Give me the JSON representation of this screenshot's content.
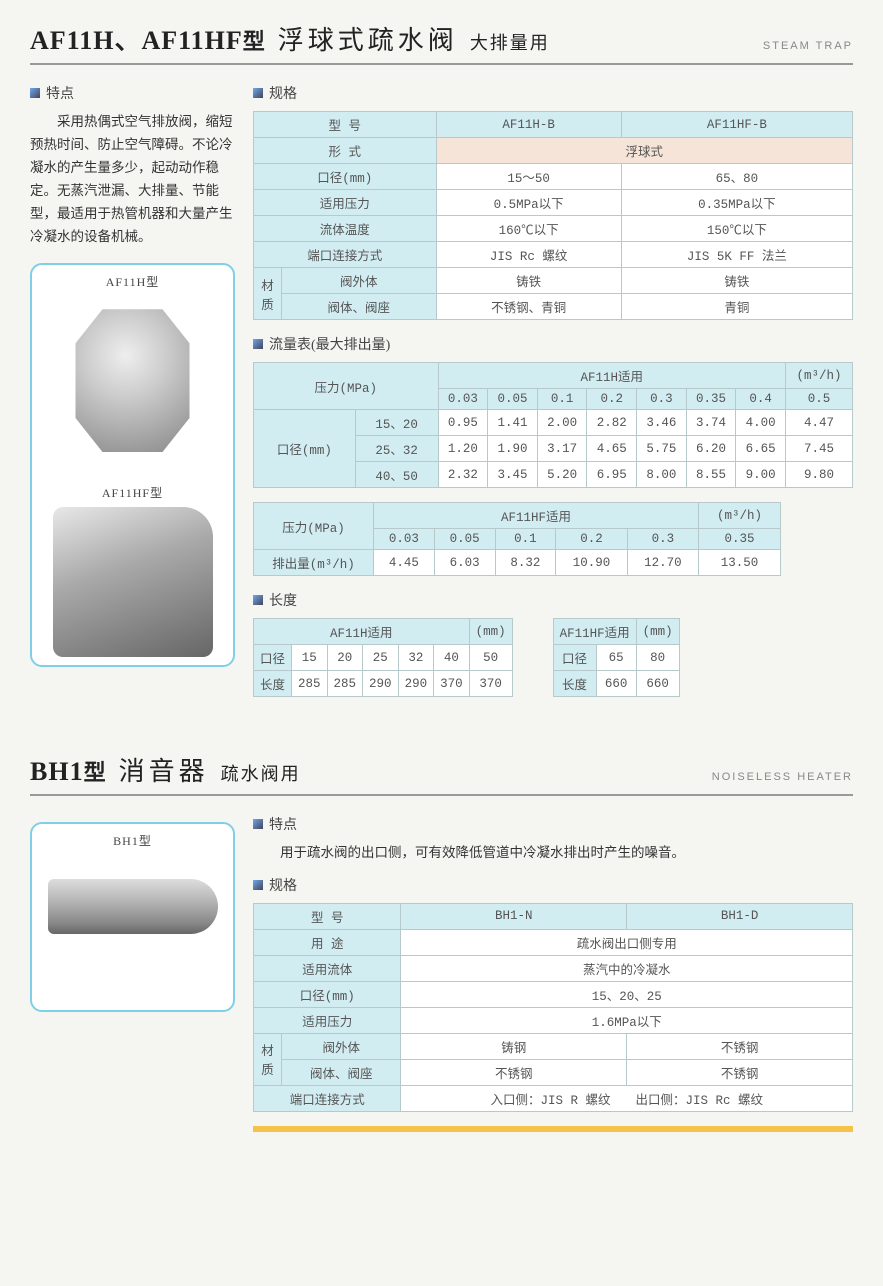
{
  "sec1": {
    "title_models": "AF11H、AF11HF",
    "title_type": "型",
    "title_name": "浮球式疏水阀",
    "title_use": "大排量用",
    "title_en": "STEAM TRAP",
    "features_hdr": "特点",
    "features_text": "采用热偶式空气排放阀，缩短预热时间、防止空气障碍。不论冷凝水的产生量多少，起动动作稳定。无蒸汽泄漏、大排量、节能型，最适用于热管机器和大量产生冷凝水的设备机械。",
    "img_labels": {
      "a": "AF11H型",
      "b": "AF11HF型"
    },
    "spec_hdr": "规格",
    "spec_table": {
      "row_model": {
        "label": "型 号",
        "a": "AF11H-B",
        "b": "AF11HF-B"
      },
      "row_form": {
        "label": "形 式",
        "val": "浮球式"
      },
      "row_dia": {
        "label": "口径(mm)",
        "a": "15～50",
        "b": "65、80"
      },
      "row_press": {
        "label": "适用压力",
        "a": "0.5MPa以下",
        "b": "0.35MPa以下"
      },
      "row_temp": {
        "label": "流体温度",
        "a": "160℃以下",
        "b": "150℃以下"
      },
      "row_conn": {
        "label": "端口连接方式",
        "a": "JIS Rc 螺纹",
        "b": "JIS 5K FF 法兰"
      },
      "mat_label": "材质",
      "row_body": {
        "label": "阀外体",
        "a": "铸铁",
        "b": "铸铁"
      },
      "row_seat": {
        "label": "阀体、阀座",
        "a": "不锈钢、青铜",
        "b": "青铜"
      }
    },
    "flow_hdr": "流量表(最大排出量)",
    "flow_af11h": {
      "caption": "AF11H适用",
      "unit": "(m³/h)",
      "press_label": "压力(MPa)",
      "dia_label": "口径(mm)",
      "pressures": [
        "0.03",
        "0.05",
        "0.1",
        "0.2",
        "0.3",
        "0.35",
        "0.4",
        "0.5"
      ],
      "rows": [
        {
          "dia": "15、20",
          "vals": [
            "0.95",
            "1.41",
            "2.00",
            "2.82",
            "3.46",
            "3.74",
            "4.00",
            "4.47"
          ]
        },
        {
          "dia": "25、32",
          "vals": [
            "1.20",
            "1.90",
            "3.17",
            "4.65",
            "5.75",
            "6.20",
            "6.65",
            "7.45"
          ]
        },
        {
          "dia": "40、50",
          "vals": [
            "2.32",
            "3.45",
            "5.20",
            "6.95",
            "8.00",
            "8.55",
            "9.00",
            "9.80"
          ]
        }
      ]
    },
    "flow_af11hf": {
      "caption": "AF11HF适用",
      "unit": "(m³/h)",
      "press_label": "压力(MPa)",
      "out_label": "排出量(m³/h)",
      "pressures": [
        "0.03",
        "0.05",
        "0.1",
        "0.2",
        "0.3",
        "0.35"
      ],
      "vals": [
        "4.45",
        "6.03",
        "8.32",
        "10.90",
        "12.70",
        "13.50"
      ]
    },
    "len_hdr": "长度",
    "len_af11h": {
      "caption": "AF11H适用",
      "unit": "(mm)",
      "dia_label": "口径",
      "len_label": "长度",
      "dias": [
        "15",
        "20",
        "25",
        "32",
        "40",
        "50"
      ],
      "lens": [
        "285",
        "285",
        "290",
        "290",
        "370",
        "370"
      ]
    },
    "len_af11hf": {
      "caption": "AF11HF适用",
      "unit": "(mm)",
      "dia_label": "口径",
      "len_label": "长度",
      "dias": [
        "65",
        "80"
      ],
      "lens": [
        "660",
        "660"
      ]
    }
  },
  "sec2": {
    "title_models": "BH1",
    "title_type": "型",
    "title_name": "消音器",
    "title_use": "疏水阀用",
    "title_en": "NOISELESS HEATER",
    "img_label": "BH1型",
    "features_hdr": "特点",
    "features_text": "用于疏水阀的出口侧，可有效降低管道中冷凝水排出时产生的噪音。",
    "spec_hdr": "规格",
    "spec_table": {
      "row_model": {
        "label": "型 号",
        "a": "BH1-N",
        "b": "BH1-D"
      },
      "row_use": {
        "label": "用 途",
        "val": "疏水阀出口侧专用"
      },
      "row_fluid": {
        "label": "适用流体",
        "val": "蒸汽中的冷凝水"
      },
      "row_dia": {
        "label": "口径(mm)",
        "val": "15、20、25"
      },
      "row_press": {
        "label": "适用压力",
        "val": "1.6MPa以下"
      },
      "mat_label": "材质",
      "row_body": {
        "label": "阀外体",
        "a": "铸钢",
        "b": "不锈钢"
      },
      "row_seat": {
        "label": "阀体、阀座",
        "a": "不锈钢",
        "b": "不锈钢"
      },
      "row_conn": {
        "label": "端口连接方式",
        "val": "入口侧：JIS R 螺纹　　出口侧：JIS Rc 螺纹"
      }
    }
  }
}
